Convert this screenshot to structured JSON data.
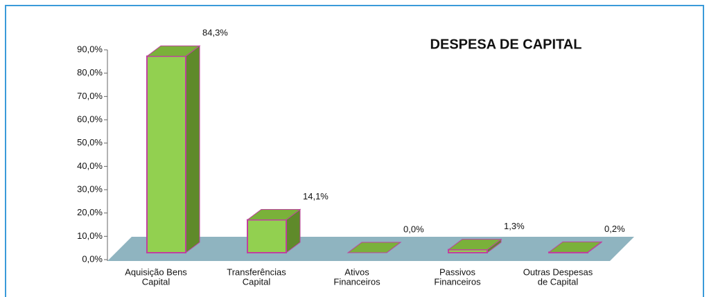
{
  "chart_data": {
    "type": "bar3d",
    "title": "DESPESA  DE CAPITAL",
    "categories": [
      [
        "Aquisição Bens",
        "Capital"
      ],
      [
        "Transferências",
        "Capital"
      ],
      [
        "Ativos",
        "Financeiros"
      ],
      [
        "Passivos",
        "Financeiros"
      ],
      [
        "Outras Despesas",
        "de Capital"
      ]
    ],
    "values": [
      84.3,
      14.1,
      0.0,
      1.3,
      0.2
    ],
    "value_labels": [
      "84,3%",
      "14,1%",
      "0,0%",
      "1,3%",
      "0,2%"
    ],
    "color": "#92d050",
    "ylim": [
      0,
      90
    ],
    "yticks": [
      {
        "value": 0,
        "label": "0,0%"
      },
      {
        "value": 10,
        "label": "10,0%"
      },
      {
        "value": 20,
        "label": "20,0%"
      },
      {
        "value": 30,
        "label": "30,0%"
      },
      {
        "value": 40,
        "label": "40,0%"
      },
      {
        "value": 50,
        "label": "50,0%"
      },
      {
        "value": 60,
        "label": "60,0%"
      },
      {
        "value": 70,
        "label": "70,0%"
      },
      {
        "value": 80,
        "label": "80,0%"
      },
      {
        "value": 90,
        "label": "90,0%"
      }
    ]
  }
}
